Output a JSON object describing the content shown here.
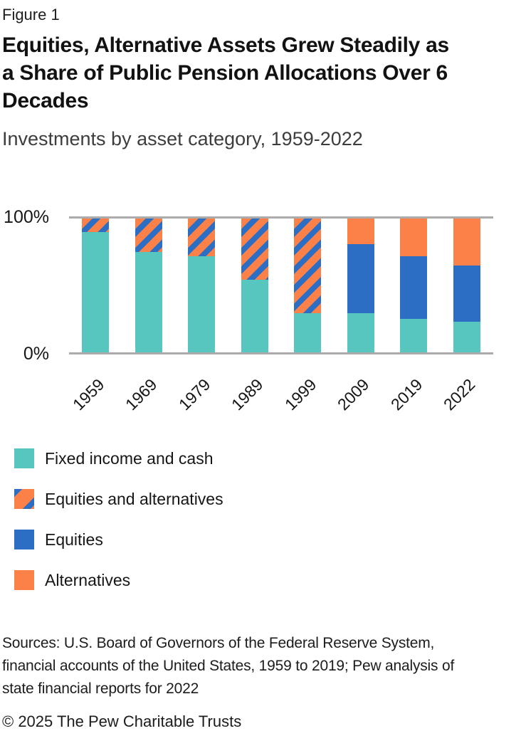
{
  "header": {
    "figure_label": "Figure 1",
    "title_lines": [
      "Equities, Alternative Assets Grew Steadily as",
      "a Share of Public Pension Allocations Over 6",
      "Decades"
    ],
    "subtitle": "Investments by asset category, 1959-2022"
  },
  "colors": {
    "fixed_income": "#57C6BF",
    "equities": "#2B6EC4",
    "alternatives": "#FC8149",
    "gridline": "#ABABAB"
  },
  "chart_data": {
    "type": "bar",
    "subtype": "100%-stacked-vertical",
    "categories": [
      "1959",
      "1969",
      "1979",
      "1989",
      "1999",
      "2009",
      "2019",
      "2022"
    ],
    "series": [
      {
        "name": "Fixed income and cash",
        "key": "fixed_income",
        "values": [
          90,
          75,
          72,
          54,
          29,
          29,
          25,
          23
        ]
      },
      {
        "name": "Equities and alternatives",
        "key": "equities_and_alternatives",
        "values": [
          10,
          25,
          28,
          46,
          71,
          0,
          0,
          0
        ]
      },
      {
        "name": "Equities",
        "key": "equities",
        "values": [
          0,
          0,
          0,
          0,
          0,
          52,
          47,
          42
        ]
      },
      {
        "name": "Alternatives",
        "key": "alternatives",
        "values": [
          0,
          0,
          0,
          0,
          0,
          19,
          28,
          35
        ]
      }
    ],
    "unit": "%",
    "ylim": [
      0,
      100
    ],
    "y_tick_labels": {
      "top": "100%",
      "bottom": "0%"
    },
    "grid": "horizontal lines at 0% and 100% only",
    "x_tick_rotation_deg": -45,
    "legend_position": "below chart, vertical list"
  },
  "legend": {
    "items": [
      {
        "label": "Fixed income and cash",
        "swatch": "fixed_income"
      },
      {
        "label": "Equities and alternatives",
        "swatch": "equities_and_alternatives"
      },
      {
        "label": "Equities",
        "swatch": "equities"
      },
      {
        "label": "Alternatives",
        "swatch": "alternatives"
      }
    ]
  },
  "sources": {
    "lines": [
      "Sources: U.S. Board of Governors of the Federal Reserve System,",
      "financial accounts of the United States, 1959 to 2019; Pew analysis of",
      "state financial reports for 2022"
    ]
  },
  "footer": "© 2025 The Pew Charitable Trusts"
}
